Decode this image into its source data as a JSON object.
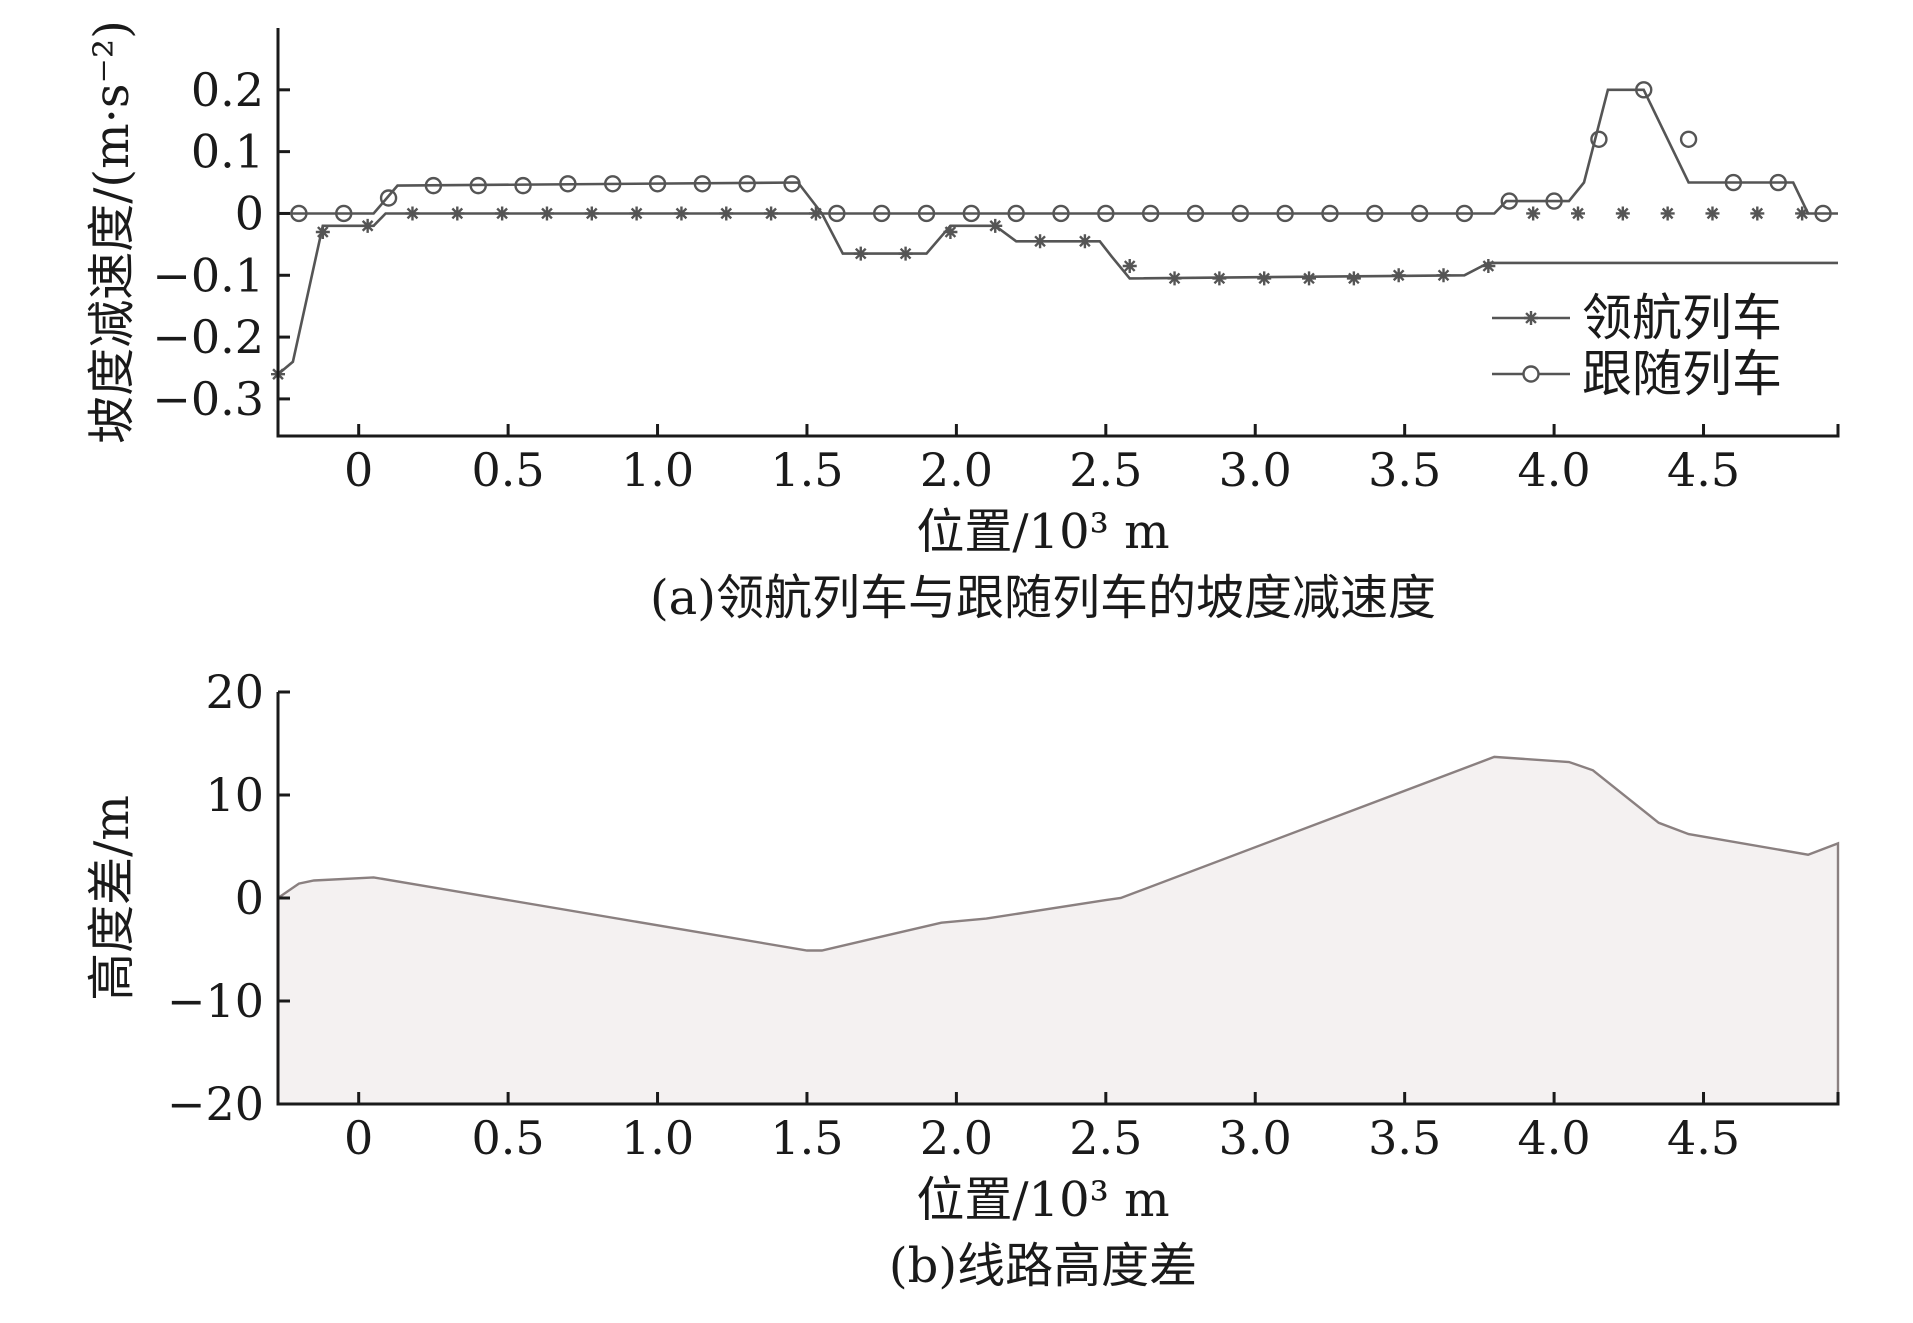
{
  "chart_data": [
    {
      "type": "line",
      "caption": "(a)领航列车与跟随列车的坡度减速度",
      "title": "",
      "xlabel": "位置/10³ m",
      "ylabel": "坡度减速度/(m·s⁻²)",
      "xlim": [
        -0.27,
        4.95
      ],
      "ylim": [
        -0.36,
        0.3
      ],
      "x_ticks": [
        0,
        0.5,
        1.0,
        1.5,
        2.0,
        2.5,
        3.0,
        3.5,
        4.0,
        4.5
      ],
      "x_tick_labels": [
        "0",
        "0.5",
        "1.0",
        "1.5",
        "2.0",
        "2.5",
        "3.0",
        "3.5",
        "4.0",
        "4.5"
      ],
      "y_ticks": [
        0.2,
        0.1,
        0,
        -0.1,
        -0.2,
        -0.3
      ],
      "y_tick_labels": [
        "0.2",
        "0.1",
        "0",
        "−0.1",
        "−0.2",
        "−0.3"
      ],
      "legend_position": "bottom-right",
      "series": [
        {
          "name": "领航列车",
          "marker": "star",
          "x": [
            -0.27,
            -0.22,
            -0.12,
            0.05,
            0.09,
            1.47,
            1.55,
            1.62,
            1.9,
            1.98,
            2.13,
            2.2,
            2.48,
            2.52,
            2.58,
            3.7,
            3.78,
            4.95
          ],
          "y": [
            -0.26,
            -0.24,
            -0.02,
            -0.02,
            0.0,
            0.0,
            0.0,
            -0.065,
            -0.065,
            -0.02,
            -0.02,
            -0.045,
            -0.045,
            -0.07,
            -0.105,
            -0.1,
            -0.08,
            -0.08
          ],
          "marker_x": [
            -0.27,
            -0.12,
            0.03,
            0.18,
            0.33,
            0.48,
            0.63,
            0.78,
            0.93,
            1.08,
            1.23,
            1.38,
            1.53,
            1.68,
            1.83,
            1.98,
            2.13,
            2.28,
            2.43,
            2.58,
            2.73,
            2.88,
            3.03,
            3.18,
            3.33,
            3.48,
            3.63,
            3.78,
            3.93,
            4.08,
            4.23,
            4.38,
            4.53,
            4.68,
            4.83
          ],
          "marker_y": [
            -0.26,
            -0.03,
            -0.02,
            0.0,
            0.0,
            0.0,
            0.0,
            0.0,
            0.0,
            0.0,
            0.0,
            0.0,
            0.0,
            -0.065,
            -0.065,
            -0.03,
            -0.02,
            -0.045,
            -0.045,
            -0.085,
            -0.105,
            -0.105,
            -0.105,
            -0.105,
            -0.105,
            -0.1,
            -0.1,
            -0.085,
            0.0,
            0.0,
            0.0,
            0.0,
            0.0,
            0.0,
            0.0
          ]
        },
        {
          "name": "跟随列车",
          "marker": "circle",
          "x": [
            -0.27,
            0.05,
            0.13,
            1.47,
            1.55,
            3.8,
            3.84,
            4.05,
            4.1,
            4.18,
            4.3,
            4.45,
            4.8,
            4.85,
            4.95
          ],
          "y": [
            0.0,
            0.0,
            0.045,
            0.05,
            0.0,
            0.0,
            0.02,
            0.02,
            0.05,
            0.2,
            0.2,
            0.05,
            0.05,
            0.0,
            0.0
          ],
          "marker_x": [
            -0.2,
            -0.05,
            0.1,
            0.25,
            0.4,
            0.55,
            0.7,
            0.85,
            1.0,
            1.15,
            1.3,
            1.45,
            1.6,
            1.75,
            1.9,
            2.05,
            2.2,
            2.35,
            2.5,
            2.65,
            2.8,
            2.95,
            3.1,
            3.25,
            3.4,
            3.55,
            3.7,
            3.85,
            4.0,
            4.15,
            4.3,
            4.45,
            4.6,
            4.75,
            4.9
          ],
          "marker_y": [
            0.0,
            0.0,
            0.025,
            0.045,
            0.045,
            0.045,
            0.048,
            0.048,
            0.048,
            0.048,
            0.048,
            0.048,
            0.0,
            0.0,
            0.0,
            0.0,
            0.0,
            0.0,
            0.0,
            0.0,
            0.0,
            0.0,
            0.0,
            0.0,
            0.0,
            0.0,
            0.0,
            0.02,
            0.02,
            0.12,
            0.2,
            0.12,
            0.05,
            0.05,
            0.0
          ]
        }
      ]
    },
    {
      "type": "area",
      "caption": "(b)线路高度差",
      "title": "",
      "xlabel": "位置/10³ m",
      "ylabel": "高度差/m",
      "xlim": [
        -0.27,
        4.95
      ],
      "ylim": [
        -20,
        20
      ],
      "x_ticks": [
        0,
        0.5,
        1.0,
        1.5,
        2.0,
        2.5,
        3.0,
        3.5,
        4.0,
        4.5
      ],
      "x_tick_labels": [
        "0",
        "0.5",
        "1.0",
        "1.5",
        "2.0",
        "2.5",
        "3.0",
        "3.5",
        "4.0",
        "4.5"
      ],
      "y_ticks": [
        20,
        10,
        0,
        -10,
        -20
      ],
      "y_tick_labels": [
        "20",
        "10",
        "0",
        "−10",
        "−20"
      ],
      "series": [
        {
          "x": [
            -0.27,
            -0.2,
            -0.15,
            0.05,
            1.5,
            1.55,
            1.95,
            2.1,
            2.5,
            2.55,
            3.8,
            4.05,
            4.13,
            4.35,
            4.45,
            4.85,
            4.95
          ],
          "y": [
            0.0,
            1.4,
            1.7,
            2.0,
            -5.1,
            -5.1,
            -2.4,
            -2.0,
            -0.2,
            0.0,
            13.7,
            13.2,
            12.4,
            7.3,
            6.2,
            4.2,
            5.3
          ]
        }
      ]
    }
  ]
}
